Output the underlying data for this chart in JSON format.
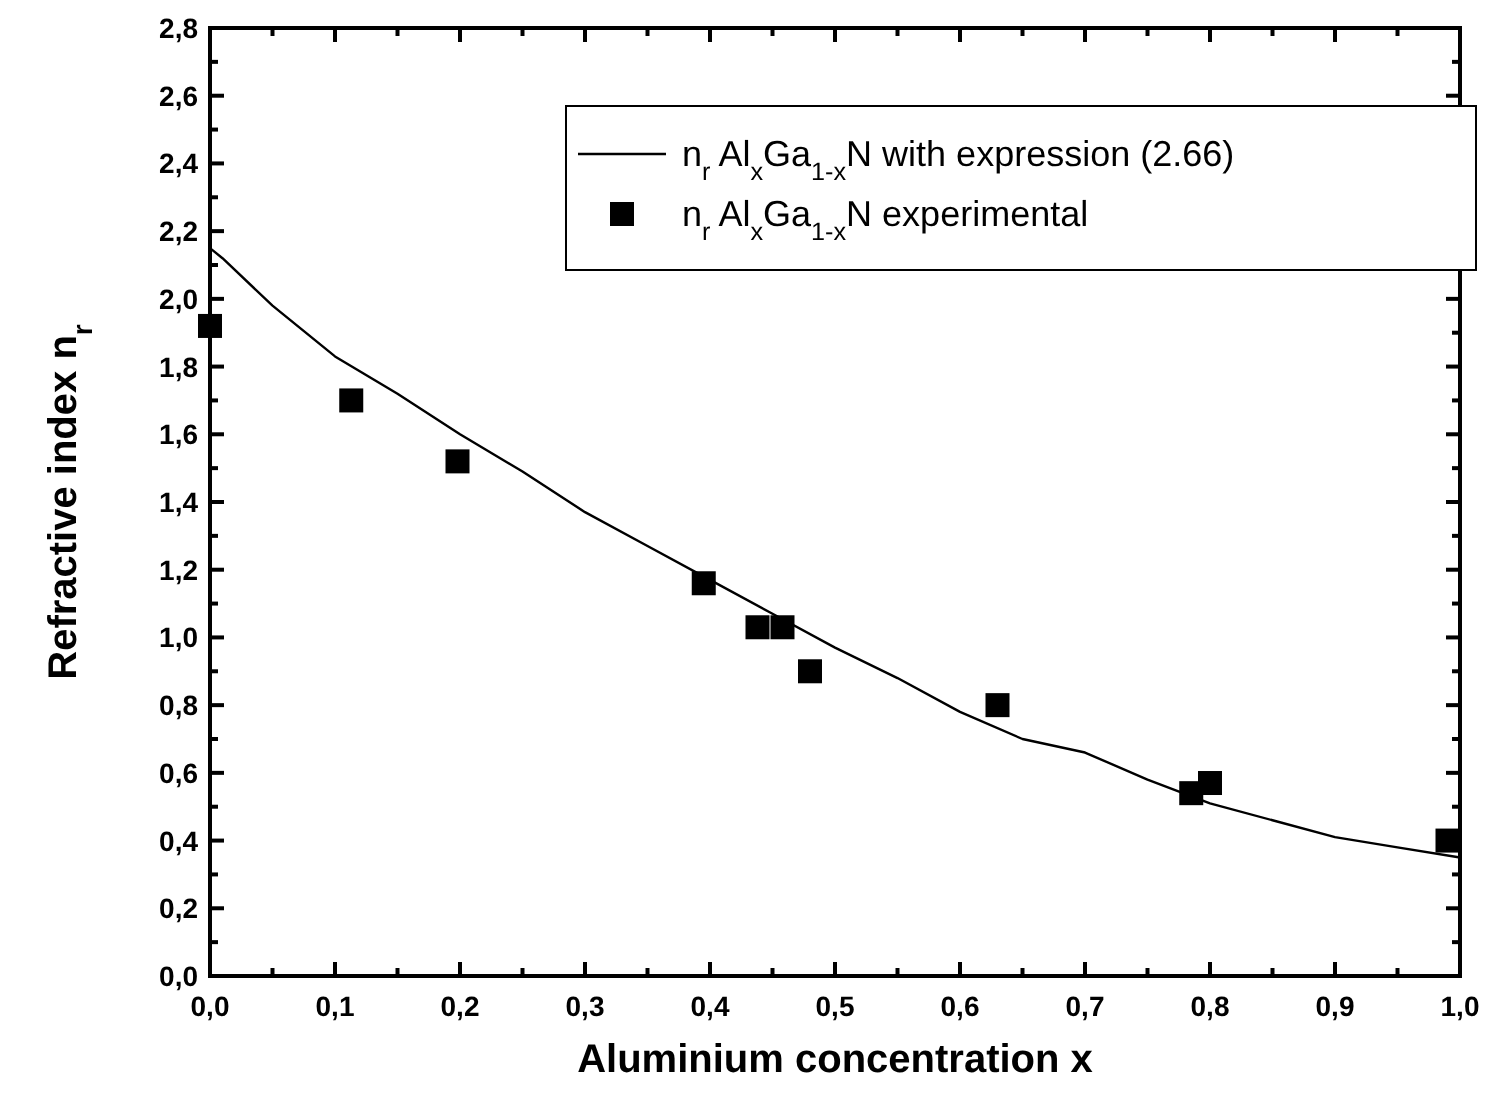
{
  "chart_data": {
    "type": "scatter",
    "xlabel": "Aluminium concentration x",
    "ylabel": "Refractive index n$_{r}$",
    "xlim": [
      0,
      1
    ],
    "ylim": [
      0,
      2.8
    ],
    "xticks": [
      {
        "value": 0,
        "label": "0,0"
      },
      {
        "value": 0.1,
        "label": "0,1"
      },
      {
        "value": 0.2,
        "label": "0,2"
      },
      {
        "value": 0.3,
        "label": "0,3"
      },
      {
        "value": 0.4,
        "label": "0,4"
      },
      {
        "value": 0.5,
        "label": "0,5"
      },
      {
        "value": 0.6,
        "label": "0,6"
      },
      {
        "value": 0.7,
        "label": "0,7"
      },
      {
        "value": 0.8,
        "label": "0,8"
      },
      {
        "value": 0.9,
        "label": "0,9"
      },
      {
        "value": 1,
        "label": "1,0"
      }
    ],
    "yticks": [
      {
        "value": 0,
        "label": "0,0"
      },
      {
        "value": 0.2,
        "label": "0,2"
      },
      {
        "value": 0.4,
        "label": "0,4"
      },
      {
        "value": 0.6,
        "label": "0,6"
      },
      {
        "value": 0.8,
        "label": "0,8"
      },
      {
        "value": 1,
        "label": "1,0"
      },
      {
        "value": 1.2,
        "label": "1,2"
      },
      {
        "value": 1.4,
        "label": "1,4"
      },
      {
        "value": 1.6,
        "label": "1,6"
      },
      {
        "value": 1.8,
        "label": "1,8"
      },
      {
        "value": 2,
        "label": "2,0"
      },
      {
        "value": 2.2,
        "label": "2,2"
      },
      {
        "value": 2.4,
        "label": "2,4"
      },
      {
        "value": 2.6,
        "label": "2,6"
      },
      {
        "value": 2.8,
        "label": "2,8"
      }
    ],
    "grid": false,
    "legend": "top right",
    "series": [
      {
        "name": "n$_{r}$ Al$_{x}$Ga$_{1-x}$N with expression (2.66)",
        "type": "line",
        "color": "#000000",
        "marker": "none",
        "line_style": "solid",
        "x": [
          0,
          0.01,
          0.05,
          0.1,
          0.15,
          0.2,
          0.25,
          0.3,
          0.35,
          0.4,
          0.45,
          0.5,
          0.55,
          0.6,
          0.65,
          0.7,
          0.75,
          0.8,
          0.85,
          0.9,
          0.95,
          1
        ],
        "values": [
          2.15,
          2.12,
          1.98,
          1.83,
          1.72,
          1.6,
          1.49,
          1.37,
          1.27,
          1.17,
          1.07,
          0.97,
          0.88,
          0.78,
          0.7,
          0.66,
          0.58,
          0.51,
          0.46,
          0.41,
          0.38,
          0.35
        ]
      },
      {
        "name": "n$_{r}$ Al$_{x}$Ga$_{1-x}$N experimental",
        "color": "#000000",
        "marker": "square",
        "x": [
          0.0,
          0.113,
          0.198,
          0.395,
          0.438,
          0.458,
          0.48,
          0.63,
          0.785,
          0.8,
          0.99
        ],
        "values": [
          1.92,
          1.7,
          1.52,
          1.16,
          1.03,
          1.03,
          0.9,
          0.8,
          0.54,
          0.57,
          0.4
        ]
      }
    ]
  }
}
